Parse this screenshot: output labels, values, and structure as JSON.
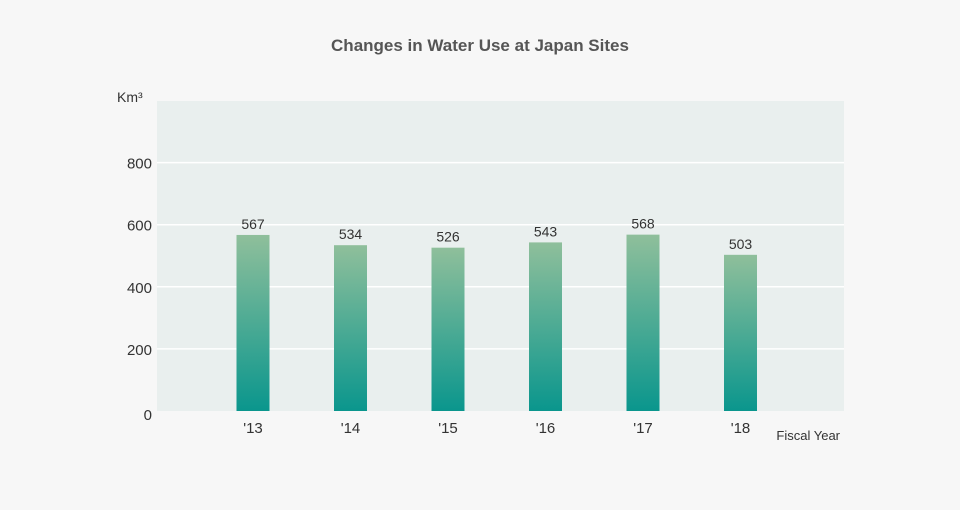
{
  "chart_data": {
    "type": "bar",
    "title": "Changes in Water Use at Japan Sites",
    "ylabel": "Km³",
    "xlabel": "Fiscal Year",
    "categories": [
      "'13",
      "'14",
      "'15",
      "'16",
      "'17",
      "'18"
    ],
    "values": [
      567,
      534,
      526,
      543,
      568,
      503
    ],
    "data_labels": [
      "567",
      "534",
      "526",
      "543",
      "568",
      "503"
    ],
    "ylim": [
      0,
      1000
    ],
    "yticks": [
      0,
      200,
      400,
      600,
      800
    ],
    "ytick_labels": [
      "0",
      "200",
      "400",
      "600",
      "800"
    ],
    "grid": true,
    "colors": {
      "plot_bg": "#e9efee",
      "bar_top": "#8fbf9b",
      "bar_bottom": "#0a968d",
      "grid": "#ffffff"
    }
  }
}
